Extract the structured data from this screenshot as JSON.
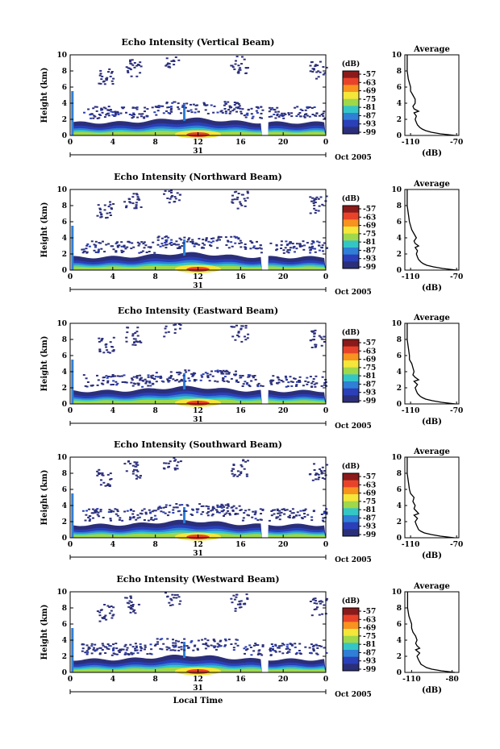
{
  "chart_data": [
    {
      "type": "heatmap",
      "title": "Echo Intensity (Vertical Beam)",
      "ylabel": "Height (km)",
      "x_ticks": [
        "0",
        "4",
        "8",
        "12",
        "16",
        "20",
        "0"
      ],
      "y_ticks": [
        "0",
        "2",
        "4",
        "6",
        "8",
        "10"
      ],
      "xlim": [
        0,
        24
      ],
      "ylim": [
        0,
        10
      ],
      "date_day": "31",
      "date_label": "Oct 2005",
      "colorbar": {
        "unit": "(dB)",
        "ticks": [
          "-57",
          "-63",
          "-69",
          "-75",
          "-81",
          "-87",
          "-93",
          "-99"
        ]
      },
      "data_gap_hours": [
        18.0,
        18.6
      ],
      "average_profile": {
        "title": "Average",
        "xlabel": "(dB)",
        "x_ticks": [
          "-110",
          "-70"
        ],
        "xlim": [
          -115,
          -68
        ],
        "y_ticks": [
          "0",
          "2",
          "4",
          "6",
          "8",
          "10"
        ],
        "height_km": [
          0,
          0.2,
          0.4,
          0.6,
          0.8,
          1.0,
          1.3,
          1.6,
          2.0,
          2.4,
          2.8,
          3.0,
          3.3,
          3.6,
          4.0,
          4.5,
          5.0,
          5.5,
          6.0,
          7.0,
          8.0,
          9.0,
          10.0
        ],
        "db": [
          -71,
          -84,
          -92,
          -97,
          -100,
          -102,
          -104,
          -105,
          -106,
          -105,
          -107,
          -103,
          -107,
          -108,
          -106,
          -106,
          -108,
          -110,
          -110,
          -112,
          -113,
          -113,
          -113
        ]
      }
    },
    {
      "type": "heatmap",
      "title": "Echo Intensity (Northward Beam)",
      "ylabel": "Height (km)",
      "x_ticks": [
        "0",
        "4",
        "8",
        "12",
        "16",
        "20",
        "0"
      ],
      "y_ticks": [
        "0",
        "2",
        "4",
        "6",
        "8",
        "10"
      ],
      "xlim": [
        0,
        24
      ],
      "ylim": [
        0,
        10
      ],
      "date_day": "31",
      "date_label": "Oct 2005",
      "colorbar": {
        "unit": "(dB)",
        "ticks": [
          "-57",
          "-63",
          "-69",
          "-75",
          "-81",
          "-87",
          "-93",
          "-99"
        ]
      },
      "data_gap_hours": [
        18.0,
        18.6
      ],
      "average_profile": {
        "title": "Average",
        "xlabel": "(dB)",
        "x_ticks": [
          "-110",
          "-70"
        ],
        "xlim": [
          -115,
          -68
        ],
        "y_ticks": [
          "0",
          "2",
          "4",
          "6",
          "8",
          "10"
        ],
        "height_km": [
          0,
          0.2,
          0.4,
          0.6,
          0.8,
          1.0,
          1.3,
          1.6,
          2.0,
          2.4,
          2.8,
          3.0,
          3.3,
          3.6,
          4.0,
          4.5,
          5.0,
          5.5,
          6.0,
          7.0,
          8.0,
          9.0,
          10.0
        ],
        "db": [
          -70,
          -82,
          -90,
          -96,
          -99,
          -101,
          -103,
          -104,
          -105,
          -104,
          -106,
          -103,
          -106,
          -107,
          -105,
          -107,
          -109,
          -110,
          -111,
          -112,
          -113,
          -113,
          -113
        ]
      }
    },
    {
      "type": "heatmap",
      "title": "Echo Intensity (Eastward Beam)",
      "ylabel": "Height (km)",
      "x_ticks": [
        "0",
        "4",
        "8",
        "12",
        "16",
        "20",
        "0"
      ],
      "y_ticks": [
        "0",
        "2",
        "4",
        "6",
        "8",
        "10"
      ],
      "xlim": [
        0,
        24
      ],
      "ylim": [
        0,
        10
      ],
      "date_day": "31",
      "date_label": "Oct 2005",
      "colorbar": {
        "unit": "(dB)",
        "ticks": [
          "-57",
          "-63",
          "-69",
          "-75",
          "-81",
          "-87",
          "-93",
          "-99"
        ]
      },
      "data_gap_hours": [
        18.0,
        18.6
      ],
      "average_profile": {
        "title": "Average",
        "xlabel": "(dB)",
        "x_ticks": [
          "-110",
          "-70"
        ],
        "xlim": [
          -115,
          -68
        ],
        "y_ticks": [
          "0",
          "2",
          "4",
          "6",
          "8",
          "10"
        ],
        "height_km": [
          0,
          0.2,
          0.4,
          0.6,
          0.8,
          1.0,
          1.3,
          1.6,
          2.0,
          2.4,
          2.8,
          3.0,
          3.3,
          3.6,
          4.0,
          4.5,
          5.0,
          5.5,
          6.0,
          7.0,
          8.0,
          9.0,
          10.0
        ],
        "db": [
          -71,
          -83,
          -91,
          -97,
          -100,
          -102,
          -104,
          -105,
          -106,
          -104,
          -107,
          -103,
          -106,
          -108,
          -107,
          -108,
          -109,
          -111,
          -111,
          -112,
          -113,
          -113,
          -113
        ]
      }
    },
    {
      "type": "heatmap",
      "title": "Echo Intensity (Southward Beam)",
      "ylabel": "Height (km)",
      "x_ticks": [
        "0",
        "4",
        "8",
        "12",
        "16",
        "20",
        "0"
      ],
      "y_ticks": [
        "0",
        "2",
        "4",
        "6",
        "8",
        "10"
      ],
      "xlim": [
        0,
        24
      ],
      "ylim": [
        0,
        10
      ],
      "date_day": "31",
      "date_label": "Oct 2005",
      "colorbar": {
        "unit": "(dB)",
        "ticks": [
          "-57",
          "-63",
          "-69",
          "-75",
          "-81",
          "-87",
          "-93",
          "-99"
        ]
      },
      "data_gap_hours": [
        18.0,
        18.6
      ],
      "average_profile": {
        "title": "Average",
        "xlabel": "(dB)",
        "x_ticks": [
          "-110",
          "-70"
        ],
        "xlim": [
          -115,
          -68
        ],
        "y_ticks": [
          "0",
          "2",
          "4",
          "6",
          "8",
          "10"
        ],
        "height_km": [
          0,
          0.2,
          0.4,
          0.6,
          0.8,
          1.0,
          1.3,
          1.6,
          2.0,
          2.4,
          2.8,
          3.0,
          3.3,
          3.6,
          4.0,
          4.5,
          5.0,
          5.5,
          6.0,
          7.0,
          8.0,
          9.0,
          10.0
        ],
        "db": [
          -72,
          -84,
          -92,
          -98,
          -101,
          -103,
          -104,
          -105,
          -106,
          -104,
          -107,
          -103,
          -105,
          -107,
          -106,
          -108,
          -107,
          -110,
          -111,
          -112,
          -113,
          -113,
          -113
        ]
      }
    },
    {
      "type": "heatmap",
      "title": "Echo Intensity (Westward Beam)",
      "ylabel": "Height (km)",
      "x_ticks": [
        "0",
        "4",
        "8",
        "12",
        "16",
        "20",
        "0"
      ],
      "y_ticks": [
        "0",
        "2",
        "4",
        "6",
        "8",
        "10"
      ],
      "xlim": [
        0,
        24
      ],
      "ylim": [
        0,
        10
      ],
      "date_day": "31",
      "date_label": "Oct 2005",
      "xlabel": "Local Time",
      "colorbar": {
        "unit": "(dB)",
        "ticks": [
          "-57",
          "-63",
          "-69",
          "-75",
          "-81",
          "-87",
          "-93",
          "-99"
        ]
      },
      "data_gap_hours": [
        18.0,
        18.6
      ],
      "average_profile": {
        "title": "Average",
        "xlabel": "(dB)",
        "x_ticks": [
          "-110",
          "-80"
        ],
        "xlim": [
          -115,
          -75
        ],
        "y_ticks": [
          "0",
          "2",
          "4",
          "6",
          "8",
          "10"
        ],
        "height_km": [
          0,
          0.2,
          0.4,
          0.6,
          0.8,
          1.0,
          1.3,
          1.6,
          2.0,
          2.4,
          2.8,
          3.0,
          3.3,
          3.6,
          4.0,
          4.5,
          5.0,
          5.5,
          6.0,
          7.0,
          8.0,
          9.0,
          10.0
        ],
        "db": [
          -78,
          -88,
          -95,
          -99,
          -101,
          -103,
          -104,
          -105,
          -106,
          -104,
          -107,
          -104,
          -106,
          -107,
          -106,
          -107,
          -109,
          -110,
          -110,
          -112,
          -113,
          -113,
          -113
        ]
      }
    }
  ],
  "colorscale": [
    "#8b1a1a",
    "#e8432a",
    "#f7931e",
    "#f5e63a",
    "#9fd84a",
    "#34c6c6",
    "#2f7fd6",
    "#2a3fb8",
    "#2b2f7a"
  ]
}
